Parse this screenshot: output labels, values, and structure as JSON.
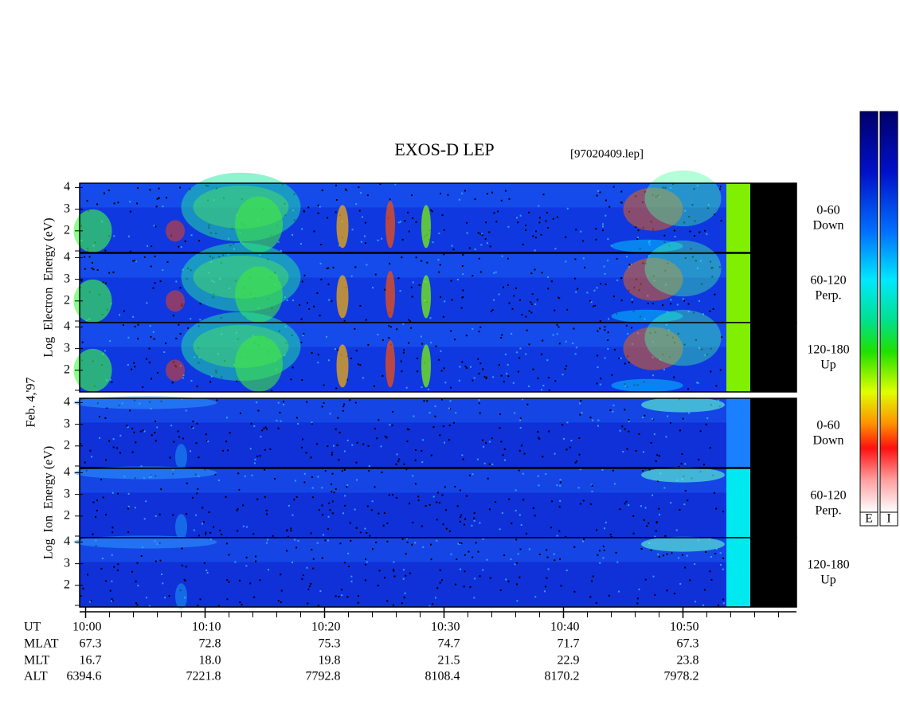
{
  "chart_data": {
    "type": "spectrogram",
    "title": "EXOS-D LEP",
    "subtitle": "[97020409.lep]",
    "date_label": "Feb. 4,'97",
    "groups": [
      {
        "ylabel": "Log  Electron  Energy (eV)",
        "panels": [
          {
            "label": "0-60",
            "sublabel": "Down"
          },
          {
            "label": "60-120",
            "sublabel": "Perp."
          },
          {
            "label": "120-180",
            "sublabel": "Up"
          }
        ]
      },
      {
        "ylabel": "Log  Ion  Energy (eV)",
        "panels": [
          {
            "label": "0-60",
            "sublabel": "Down"
          },
          {
            "label": "60-120",
            "sublabel": "Perp."
          },
          {
            "label": "120-180",
            "sublabel": "Up"
          }
        ]
      }
    ],
    "ylim": [
      1,
      4.2
    ],
    "yticks": [
      2,
      3,
      4
    ],
    "yminorticks": [
      1
    ],
    "xlim": [
      -0.5,
      59.5
    ],
    "xticks": [
      {
        "value": 0,
        "label": "10:00"
      },
      {
        "value": 10,
        "label": "10:10"
      },
      {
        "value": 20,
        "label": "10:20"
      },
      {
        "value": 30,
        "label": "10:30"
      },
      {
        "value": 40,
        "label": "10:40"
      },
      {
        "value": 50,
        "label": "10:50"
      }
    ],
    "xminorticks": [
      2,
      4,
      6,
      8,
      12,
      14,
      16,
      18,
      22,
      24,
      26,
      28,
      32,
      34,
      36,
      38,
      42,
      44,
      46,
      48,
      52,
      54,
      56,
      58
    ],
    "orbit": {
      "x_label": "UT",
      "rows": [
        {
          "label": "MLAT",
          "values": [
            "67.3",
            "72.8",
            "75.3",
            "74.7",
            "71.7",
            "67.3"
          ]
        },
        {
          "label": "MLT",
          "values": [
            "16.7",
            "18.0",
            "19.8",
            "21.5",
            "22.9",
            "23.8"
          ]
        },
        {
          "label": "ALT",
          "values": [
            "6394.6",
            "7221.8",
            "7792.8",
            "8108.4",
            "8170.2",
            "7978.2"
          ]
        }
      ]
    },
    "colorbar_labels": [
      "E",
      "I"
    ]
  }
}
